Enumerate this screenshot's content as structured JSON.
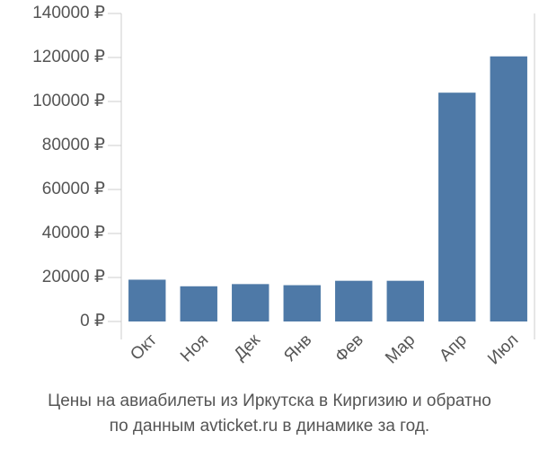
{
  "chart_data": {
    "type": "bar",
    "title": [
      "Цены на авиабилеты из Иркутска в Киргизию и обратно",
      "по данным avticket.ru в динамике за год."
    ],
    "categories": [
      "Окт",
      "Ноя",
      "Дек",
      "Янв",
      "Фев",
      "Мар",
      "Апр",
      "Июл"
    ],
    "values": [
      19000,
      16000,
      17000,
      16500,
      18500,
      18500,
      104000,
      120500
    ],
    "color": "#4e79a7",
    "ylim": [
      0,
      140000
    ],
    "yticks": [
      {
        "value": 0,
        "label": "0 ₽"
      },
      {
        "value": 20000,
        "label": "20000 ₽"
      },
      {
        "value": 40000,
        "label": "40000 ₽"
      },
      {
        "value": 60000,
        "label": "60000 ₽"
      },
      {
        "value": 80000,
        "label": "80000 ₽"
      },
      {
        "value": 100000,
        "label": "100000 ₽"
      },
      {
        "value": 120000,
        "label": "120000 ₽"
      },
      {
        "value": 140000,
        "label": "140000 ₽"
      }
    ],
    "grid": false
  }
}
